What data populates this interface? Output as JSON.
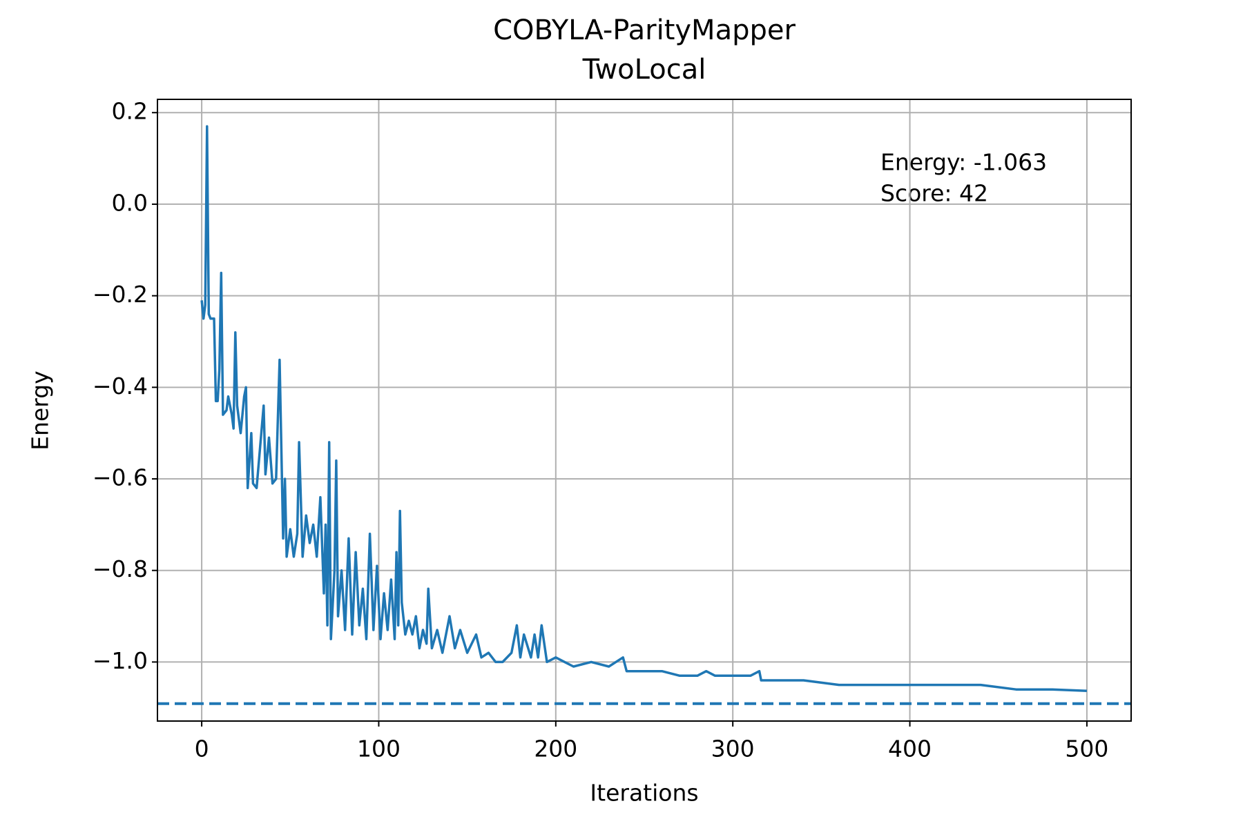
{
  "chart_data": {
    "type": "line",
    "title": "COBYLA-ParityMapper",
    "subtitle": "TwoLocal",
    "x_label": "Iterations",
    "y_label": "Energy",
    "annotations": [
      "Energy: -1.063",
      "Score: 42"
    ],
    "x": [
      0,
      1,
      2,
      3,
      4,
      5,
      7,
      8,
      9,
      10,
      11,
      12,
      14,
      15,
      17,
      18,
      19,
      20,
      22,
      24,
      25,
      26,
      28,
      29,
      31,
      33,
      35,
      36,
      38,
      40,
      42,
      44,
      46,
      47,
      48,
      50,
      52,
      54,
      55,
      57,
      59,
      61,
      63,
      65,
      67,
      69,
      70,
      71,
      72,
      73,
      75,
      76,
      77,
      79,
      81,
      83,
      85,
      87,
      89,
      91,
      93,
      95,
      97,
      99,
      101,
      103,
      105,
      107,
      109,
      110,
      111,
      112,
      113,
      115,
      117,
      119,
      121,
      123,
      125,
      127,
      128,
      130,
      133,
      136,
      140,
      143,
      146,
      150,
      155,
      158,
      162,
      166,
      170,
      175,
      178,
      180,
      182,
      186,
      188,
      190,
      192,
      195,
      200,
      205,
      210,
      220,
      230,
      238,
      240,
      250,
      260,
      270,
      280,
      285,
      290,
      300,
      310,
      315,
      316,
      330,
      340,
      360,
      380,
      400,
      420,
      440,
      460,
      480,
      500
    ],
    "series": [
      {
        "name": "Energy",
        "color": "#1f77b4",
        "values": [
          -0.21,
          -0.25,
          -0.22,
          0.17,
          -0.24,
          -0.25,
          -0.25,
          -0.43,
          -0.43,
          -0.36,
          -0.15,
          -0.46,
          -0.45,
          -0.42,
          -0.46,
          -0.49,
          -0.28,
          -0.44,
          -0.5,
          -0.42,
          -0.4,
          -0.62,
          -0.5,
          -0.61,
          -0.62,
          -0.53,
          -0.44,
          -0.59,
          -0.51,
          -0.61,
          -0.6,
          -0.34,
          -0.73,
          -0.6,
          -0.77,
          -0.71,
          -0.77,
          -0.72,
          -0.52,
          -0.77,
          -0.68,
          -0.74,
          -0.7,
          -0.77,
          -0.64,
          -0.85,
          -0.7,
          -0.92,
          -0.52,
          -0.95,
          -0.8,
          -0.56,
          -0.9,
          -0.8,
          -0.93,
          -0.73,
          -0.94,
          -0.76,
          -0.92,
          -0.84,
          -0.95,
          -0.72,
          -0.93,
          -0.79,
          -0.95,
          -0.85,
          -0.93,
          -0.82,
          -0.95,
          -0.76,
          -0.92,
          -0.67,
          -0.87,
          -0.94,
          -0.91,
          -0.94,
          -0.9,
          -0.97,
          -0.93,
          -0.96,
          -0.84,
          -0.97,
          -0.93,
          -0.98,
          -0.9,
          -0.97,
          -0.93,
          -0.98,
          -0.94,
          -0.99,
          -0.98,
          -1.0,
          -1.0,
          -0.98,
          -0.92,
          -0.99,
          -0.94,
          -0.99,
          -0.94,
          -0.99,
          -0.92,
          -1.0,
          -0.99,
          -1.0,
          -1.01,
          -1.0,
          -1.01,
          -0.99,
          -1.02,
          -1.02,
          -1.02,
          -1.03,
          -1.03,
          -1.02,
          -1.03,
          -1.03,
          -1.03,
          -1.02,
          -1.04,
          -1.04,
          -1.04,
          -1.05,
          -1.05,
          -1.05,
          -1.05,
          -1.05,
          -1.06,
          -1.06,
          -1.063
        ]
      }
    ],
    "reference": -1.091,
    "xlim": [
      -25,
      525
    ],
    "ylim": [
      -1.129,
      0.229
    ],
    "xticks": [
      0,
      100,
      200,
      300,
      400,
      500
    ],
    "yticks": [
      {
        "value": -1.0,
        "label": "−1.0"
      },
      {
        "value": -0.8,
        "label": "−0.8"
      },
      {
        "value": -0.6,
        "label": "−0.6"
      },
      {
        "value": -0.4,
        "label": "−0.4"
      },
      {
        "value": -0.2,
        "label": "−0.2"
      },
      {
        "value": 0,
        "label": "0.0"
      },
      0.2
    ],
    "grid": true
  }
}
